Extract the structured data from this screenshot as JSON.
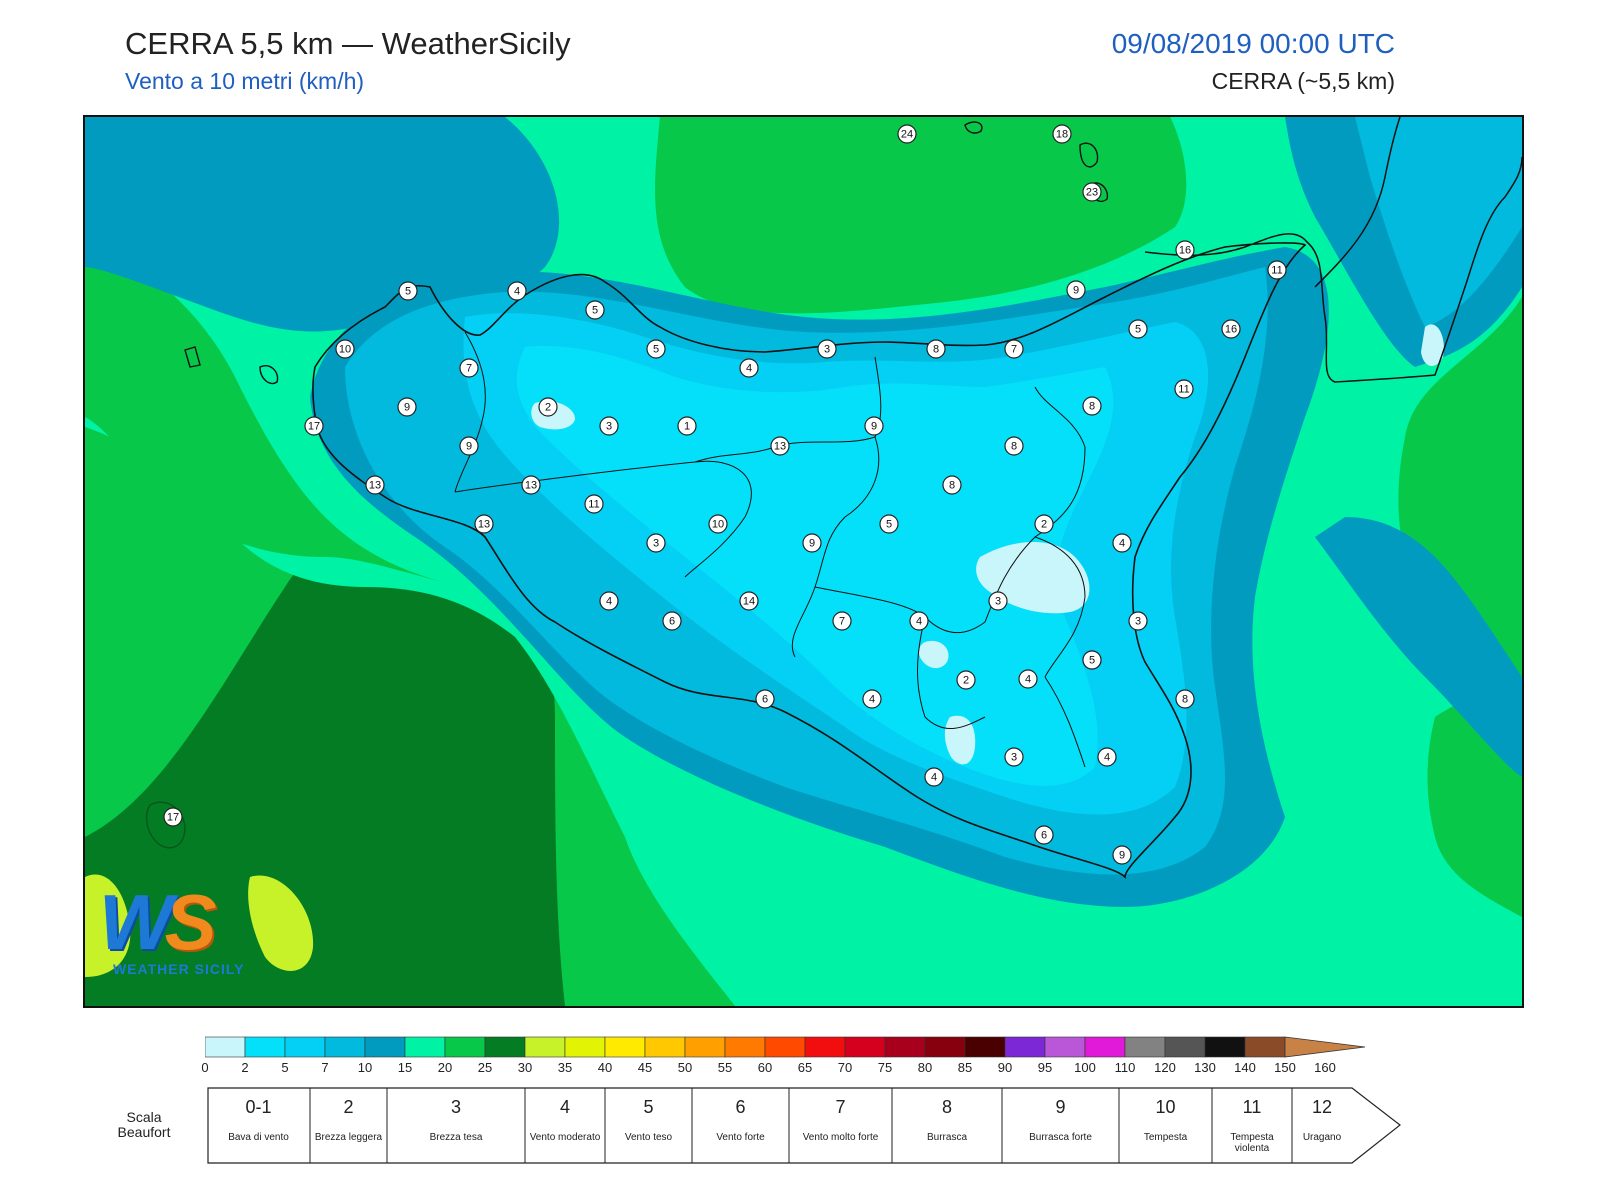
{
  "header": {
    "title": "CERRA 5,5 km — WeatherSicily",
    "subtitle": "Vento a 10 metri (km/h)",
    "datetime": "09/08/2019 00:00 UTC",
    "model": "CERRA (~5,5 km)"
  },
  "logo": {
    "letters_w": "W",
    "letters_s": "S",
    "name": "WEATHER SICILY"
  },
  "map": {
    "point_values": [
      "24",
      "18",
      "23",
      "16",
      "11",
      "9",
      "16",
      "5",
      "11",
      "8",
      "7",
      "8",
      "4",
      "3",
      "5",
      "5",
      "4",
      "5",
      "10",
      "7",
      "9",
      "17",
      "9",
      "2",
      "3",
      "1",
      "13",
      "9",
      "8",
      "8",
      "13",
      "13",
      "11",
      "13",
      "10",
      "9",
      "5",
      "2",
      "4",
      "3",
      "4",
      "3",
      "3",
      "14",
      "6",
      "7",
      "4",
      "3",
      "2",
      "4",
      "5",
      "6",
      "4",
      "8",
      "4",
      "3",
      "4",
      "6",
      "9",
      "17"
    ]
  },
  "colorbar": {
    "ticks": [
      "0",
      "2",
      "5",
      "7",
      "10",
      "15",
      "20",
      "25",
      "30",
      "35",
      "40",
      "45",
      "50",
      "55",
      "60",
      "65",
      "70",
      "75",
      "80",
      "85",
      "90",
      "95",
      "100",
      "110",
      "120",
      "130",
      "140",
      "150",
      "160"
    ],
    "colors": [
      "#c9f6fb",
      "#05e0fa",
      "#04cff4",
      "#02badd",
      "#029bc0",
      "#00f2a4",
      "#08c84a",
      "#037c24",
      "#c7f22a",
      "#e3f304",
      "#ffea00",
      "#ffc800",
      "#ffa000",
      "#ff7a00",
      "#ff4a00",
      "#f20e0e",
      "#d4001e",
      "#a8001c",
      "#86000e",
      "#4a0000",
      "#7c28d6",
      "#b957d8",
      "#e01ad8",
      "#828282",
      "#555555",
      "#111111",
      "#8a4b28",
      "#c98245"
    ]
  },
  "beaufort": {
    "caption": "Scala Beaufort",
    "cells": [
      {
        "num": "0-1",
        "desc": "Bava di vento"
      },
      {
        "num": "2",
        "desc": "Brezza leggera"
      },
      {
        "num": "3",
        "desc": "Brezza tesa"
      },
      {
        "num": "4",
        "desc": "Vento moderato"
      },
      {
        "num": "5",
        "desc": "Vento teso"
      },
      {
        "num": "6",
        "desc": "Vento forte"
      },
      {
        "num": "7",
        "desc": "Vento molto forte"
      },
      {
        "num": "8",
        "desc": "Burrasca"
      },
      {
        "num": "9",
        "desc": "Burrasca forte"
      },
      {
        "num": "10",
        "desc": "Tempesta"
      },
      {
        "num": "11",
        "desc": "Tempesta violenta"
      },
      {
        "num": "12",
        "desc": "Uragano"
      }
    ]
  }
}
